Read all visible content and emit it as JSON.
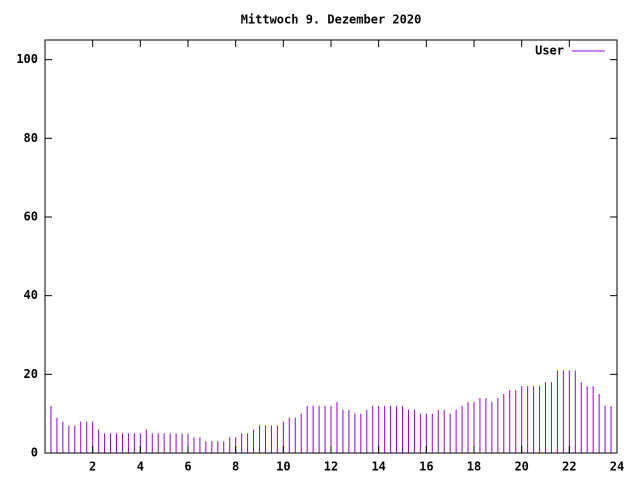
{
  "chart_data": {
    "type": "impulse",
    "title": "Mittwoch 9. Dezember 2020",
    "x": [
      0,
      0.25,
      0.5,
      0.75,
      1,
      1.25,
      1.5,
      1.75,
      2,
      2.25,
      2.5,
      2.75,
      3,
      3.25,
      3.5,
      3.75,
      4,
      4.25,
      4.5,
      4.75,
      5,
      5.25,
      5.5,
      5.75,
      6,
      6.25,
      6.5,
      6.75,
      7,
      7.25,
      7.5,
      7.75,
      8,
      8.25,
      8.5,
      8.75,
      9,
      9.25,
      9.5,
      9.75,
      10,
      10.25,
      10.5,
      10.75,
      11,
      11.25,
      11.5,
      11.75,
      12,
      12.25,
      12.5,
      12.75,
      13,
      13.25,
      13.5,
      13.75,
      14,
      14.25,
      14.5,
      14.75,
      15,
      15.25,
      15.5,
      15.75,
      16,
      16.25,
      16.5,
      16.75,
      17,
      17.25,
      17.5,
      17.75,
      18,
      18.25,
      18.5,
      18.75,
      19,
      19.25,
      19.5,
      19.75,
      20,
      20.25,
      20.5,
      20.75,
      21,
      21.25,
      21.5,
      21.75,
      22,
      22.25,
      22.5,
      22.75,
      23,
      23.25,
      23.5,
      23.75,
      24
    ],
    "series": [
      {
        "name": "User",
        "color": "#9400d3",
        "values": [
          13,
          12,
          9,
          8,
          7,
          7,
          8,
          8,
          8,
          6,
          5,
          5,
          5,
          5,
          5,
          5,
          5,
          6,
          5,
          5,
          5,
          5,
          5,
          5,
          5,
          4,
          4,
          3,
          3,
          3,
          3,
          4,
          4,
          5,
          5,
          6,
          7,
          7,
          7,
          7,
          8,
          9,
          9,
          10,
          12,
          12,
          12,
          12,
          12,
          13,
          11,
          11,
          10,
          10,
          11,
          12,
          12,
          12,
          12,
          12,
          12,
          11,
          11,
          10,
          10,
          10,
          11,
          11,
          10,
          11,
          12,
          13,
          13,
          14,
          14,
          13,
          14,
          15,
          16,
          16,
          17,
          17,
          17,
          17,
          18,
          18,
          21,
          21,
          21,
          21,
          18,
          17,
          17,
          15,
          12,
          12,
          9
        ]
      }
    ],
    "xlim": [
      0,
      24
    ],
    "ylim": [
      0,
      105
    ],
    "xticks": [
      2,
      4,
      6,
      8,
      10,
      12,
      14,
      16,
      18,
      20,
      22,
      24
    ],
    "yticks": [
      0,
      20,
      40,
      60,
      80,
      100
    ],
    "legend": "top-right"
  }
}
